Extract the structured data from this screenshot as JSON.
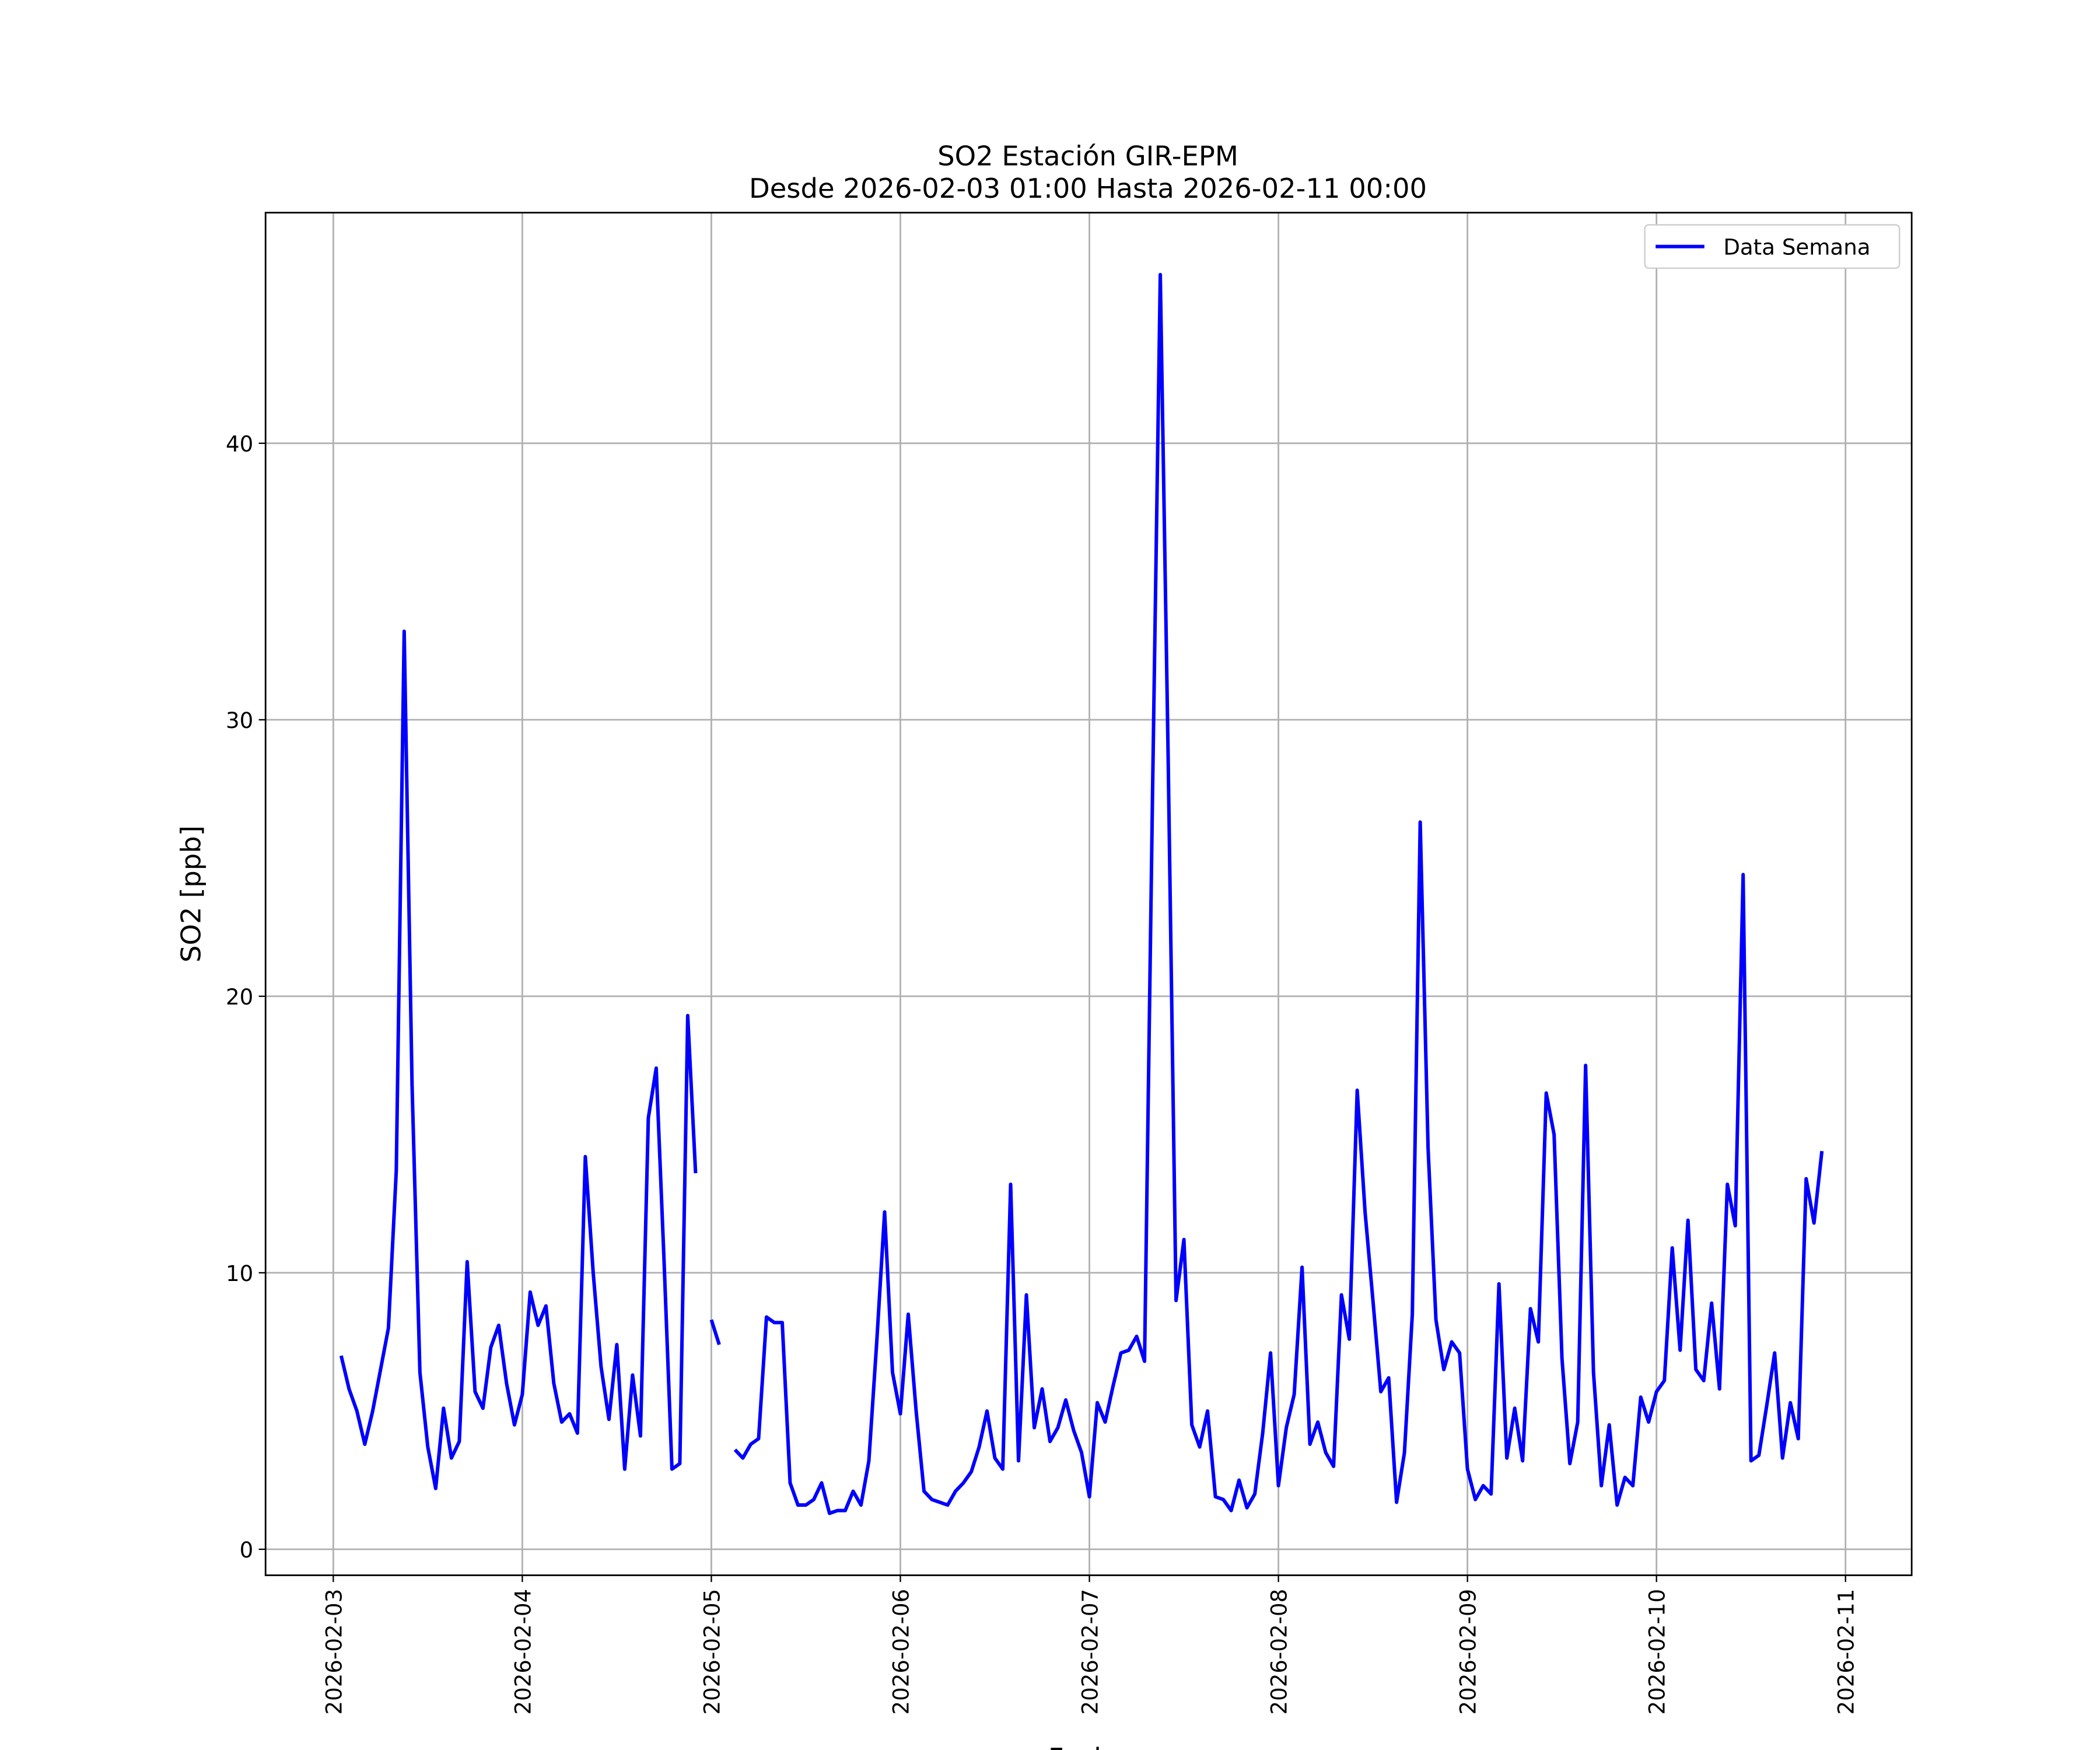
{
  "chart_data": {
    "type": "line",
    "title": "SO2 Estación GIR-EPM",
    "subtitle": "Desde 2026-02-03 01:00 Hasta 2026-02-11 00:00",
    "x_label": "Fecha",
    "y_label": "SO2 [ppb]",
    "x": [
      "2026-02-03 01:00",
      "2026-02-03 02:00",
      "2026-02-03 03:00",
      "2026-02-03 04:00",
      "2026-02-03 05:00",
      "2026-02-03 06:00",
      "2026-02-03 07:00",
      "2026-02-03 08:00",
      "2026-02-03 09:00",
      "2026-02-03 10:00",
      "2026-02-03 11:00",
      "2026-02-03 12:00",
      "2026-02-03 13:00",
      "2026-02-03 14:00",
      "2026-02-03 15:00",
      "2026-02-03 16:00",
      "2026-02-03 17:00",
      "2026-02-03 18:00",
      "2026-02-03 19:00",
      "2026-02-03 20:00",
      "2026-02-03 21:00",
      "2026-02-03 22:00",
      "2026-02-03 23:00",
      "2026-02-04 00:00",
      "2026-02-04 01:00",
      "2026-02-04 02:00",
      "2026-02-04 03:00",
      "2026-02-04 04:00",
      "2026-02-04 05:00",
      "2026-02-04 06:00",
      "2026-02-04 07:00",
      "2026-02-04 08:00",
      "2026-02-04 09:00",
      "2026-02-04 10:00",
      "2026-02-04 11:00",
      "2026-02-04 12:00",
      "2026-02-04 13:00",
      "2026-02-04 14:00",
      "2026-02-04 15:00",
      "2026-02-04 16:00",
      "2026-02-04 17:00",
      "2026-02-04 18:00",
      "2026-02-04 19:00",
      "2026-02-04 20:00",
      "2026-02-04 21:00",
      "2026-02-04 22:00",
      "2026-02-04 23:00",
      "2026-02-05 00:00",
      "2026-02-05 01:00",
      "2026-02-05 02:00",
      "2026-02-05 03:00",
      "2026-02-05 04:00",
      "2026-02-05 05:00",
      "2026-02-05 06:00",
      "2026-02-05 07:00",
      "2026-02-05 08:00",
      "2026-02-05 09:00",
      "2026-02-05 10:00",
      "2026-02-05 11:00",
      "2026-02-05 12:00",
      "2026-02-05 13:00",
      "2026-02-05 14:00",
      "2026-02-05 15:00",
      "2026-02-05 16:00",
      "2026-02-05 17:00",
      "2026-02-05 18:00",
      "2026-02-05 19:00",
      "2026-02-05 20:00",
      "2026-02-05 21:00",
      "2026-02-05 22:00",
      "2026-02-05 23:00",
      "2026-02-06 00:00",
      "2026-02-06 01:00",
      "2026-02-06 02:00",
      "2026-02-06 03:00",
      "2026-02-06 04:00",
      "2026-02-06 05:00",
      "2026-02-06 06:00",
      "2026-02-06 07:00",
      "2026-02-06 08:00",
      "2026-02-06 09:00",
      "2026-02-06 10:00",
      "2026-02-06 11:00",
      "2026-02-06 12:00",
      "2026-02-06 13:00",
      "2026-02-06 14:00",
      "2026-02-06 15:00",
      "2026-02-06 16:00",
      "2026-02-06 17:00",
      "2026-02-06 18:00",
      "2026-02-06 19:00",
      "2026-02-06 20:00",
      "2026-02-06 21:00",
      "2026-02-06 22:00",
      "2026-02-06 23:00",
      "2026-02-07 00:00",
      "2026-02-07 01:00",
      "2026-02-07 02:00",
      "2026-02-07 03:00",
      "2026-02-07 04:00",
      "2026-02-07 05:00",
      "2026-02-07 06:00",
      "2026-02-07 07:00",
      "2026-02-07 08:00",
      "2026-02-07 09:00",
      "2026-02-07 10:00",
      "2026-02-07 11:00",
      "2026-02-07 12:00",
      "2026-02-07 13:00",
      "2026-02-07 14:00",
      "2026-02-07 15:00",
      "2026-02-07 16:00",
      "2026-02-07 17:00",
      "2026-02-07 18:00",
      "2026-02-07 19:00",
      "2026-02-07 20:00",
      "2026-02-07 21:00",
      "2026-02-07 22:00",
      "2026-02-07 23:00",
      "2026-02-08 00:00",
      "2026-02-08 01:00",
      "2026-02-08 02:00",
      "2026-02-08 03:00",
      "2026-02-08 04:00",
      "2026-02-08 05:00",
      "2026-02-08 06:00",
      "2026-02-08 07:00",
      "2026-02-08 08:00",
      "2026-02-08 09:00",
      "2026-02-08 10:00",
      "2026-02-08 11:00",
      "2026-02-08 12:00",
      "2026-02-08 13:00",
      "2026-02-08 14:00",
      "2026-02-08 15:00",
      "2026-02-08 16:00",
      "2026-02-08 17:00",
      "2026-02-08 18:00",
      "2026-02-08 19:00",
      "2026-02-08 20:00",
      "2026-02-08 21:00",
      "2026-02-08 22:00",
      "2026-02-08 23:00",
      "2026-02-09 00:00",
      "2026-02-09 01:00",
      "2026-02-09 02:00",
      "2026-02-09 03:00",
      "2026-02-09 04:00",
      "2026-02-09 05:00",
      "2026-02-09 06:00",
      "2026-02-09 07:00",
      "2026-02-09 08:00",
      "2026-02-09 09:00",
      "2026-02-09 10:00",
      "2026-02-09 11:00",
      "2026-02-09 12:00",
      "2026-02-09 13:00",
      "2026-02-09 14:00",
      "2026-02-09 15:00",
      "2026-02-09 16:00",
      "2026-02-09 17:00",
      "2026-02-09 18:00",
      "2026-02-09 19:00",
      "2026-02-09 20:00",
      "2026-02-09 21:00",
      "2026-02-09 22:00",
      "2026-02-09 23:00",
      "2026-02-10 00:00",
      "2026-02-10 01:00",
      "2026-02-10 02:00",
      "2026-02-10 03:00",
      "2026-02-10 04:00",
      "2026-02-10 05:00",
      "2026-02-10 06:00",
      "2026-02-10 07:00",
      "2026-02-10 08:00",
      "2026-02-10 09:00",
      "2026-02-10 10:00",
      "2026-02-10 11:00",
      "2026-02-10 12:00",
      "2026-02-10 13:00",
      "2026-02-10 14:00",
      "2026-02-10 15:00",
      "2026-02-10 16:00",
      "2026-02-10 17:00",
      "2026-02-10 18:00",
      "2026-02-10 19:00",
      "2026-02-10 20:00",
      "2026-02-10 21:00"
    ],
    "series": [
      {
        "name": "Data Semana",
        "color": "#0000ff",
        "values": [
          7.0,
          5.8,
          5.0,
          3.8,
          5.0,
          6.5,
          8.0,
          13.7,
          33.2,
          16.8,
          6.4,
          3.7,
          2.2,
          5.1,
          3.3,
          3.9,
          10.4,
          5.7,
          5.1,
          7.3,
          8.1,
          6.0,
          4.5,
          5.6,
          9.3,
          8.1,
          8.8,
          6.0,
          4.6,
          4.9,
          4.2,
          14.2,
          10.0,
          6.6,
          4.7,
          7.4,
          2.9,
          6.3,
          4.1,
          15.6,
          17.4,
          10.4,
          2.9,
          3.1,
          19.3,
          13.6,
          null,
          8.3,
          7.4,
          null,
          3.6,
          3.3,
          3.8,
          4.0,
          8.4,
          8.2,
          8.2,
          2.4,
          1.6,
          1.6,
          1.8,
          2.4,
          1.3,
          1.4,
          1.4,
          2.1,
          1.6,
          3.2,
          7.5,
          12.2,
          6.4,
          4.9,
          8.5,
          5.0,
          2.1,
          1.8,
          1.7,
          1.6,
          2.1,
          2.4,
          2.8,
          3.7,
          5.0,
          3.3,
          2.9,
          13.2,
          3.2,
          9.2,
          4.4,
          5.8,
          3.9,
          4.4,
          5.4,
          4.3,
          3.5,
          1.9,
          5.3,
          4.6,
          5.9,
          7.1,
          7.2,
          7.7,
          6.8,
          27,
          46.1,
          28.6,
          9.0,
          11.2,
          4.5,
          3.7,
          5.0,
          1.9,
          1.8,
          1.4,
          2.5,
          1.5,
          2.0,
          4.2,
          7.1,
          2.3,
          4.4,
          5.6,
          10.2,
          3.8,
          4.6,
          3.5,
          3.0,
          9.2,
          7.6,
          16.6,
          12.2,
          9.0,
          5.7,
          6.2,
          1.7,
          3.5,
          8.5,
          26.3,
          14.5,
          8.3,
          6.5,
          7.5,
          7.1,
          2.9,
          1.8,
          2.3,
          2.0,
          9.6,
          3.3,
          5.1,
          3.2,
          8.7,
          7.5,
          16.5,
          15.0,
          6.9,
          3.1,
          4.6,
          17.5,
          6.4,
          2.3,
          4.5,
          1.6,
          2.6,
          2.3,
          5.5,
          4.6,
          5.7,
          6.1,
          10.9,
          7.2,
          11.9,
          6.5,
          6.1,
          8.9,
          5.8,
          13.2,
          11.7,
          24.4,
          3.2,
          3.4,
          5.2,
          7.1,
          3.3,
          5.3,
          4.0,
          13.4,
          11.8,
          14.4
        ]
      }
    ],
    "xlim": [
      "2026-02-02 15:24",
      "2026-02-11 08:24"
    ],
    "xticks": [
      "2026-02-03",
      "2026-02-04",
      "2026-02-05",
      "2026-02-06",
      "2026-02-07",
      "2026-02-08",
      "2026-02-09",
      "2026-02-10",
      "2026-02-11"
    ],
    "ylim": [
      -0.94,
      48.34
    ],
    "yticks": [
      0,
      10,
      20,
      30,
      40
    ],
    "grid": true,
    "legend": "upper right"
  }
}
